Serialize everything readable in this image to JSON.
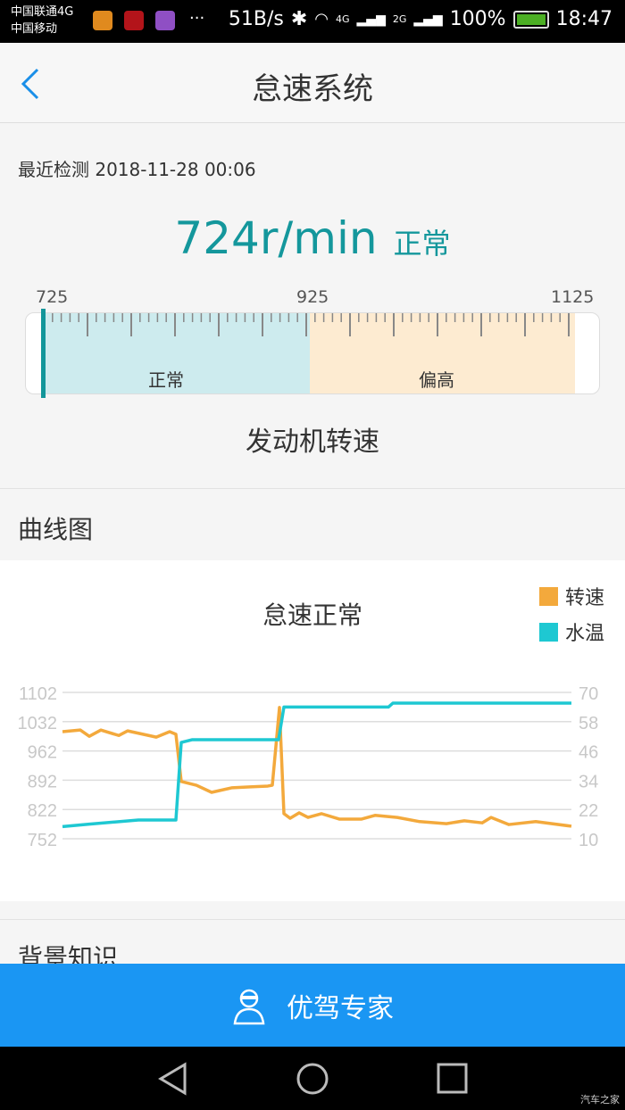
{
  "status_bar": {
    "carrier1": "中国联通4G",
    "carrier2": "中国移动",
    "more": "···",
    "speed": "51B/s",
    "net1": "4G",
    "net2": "2G",
    "battery": "100%",
    "time": "18:47"
  },
  "header": {
    "title": "怠速系统",
    "back_icon": "chevron-left-icon"
  },
  "summary": {
    "recent_label": "最近检测 2018-11-28 00:06",
    "value": "724r/min",
    "status": "正常",
    "accent": "#14979c"
  },
  "gauge": {
    "min_label": "725",
    "mid_label": "925",
    "max_label": "1125",
    "normal_label": "正常",
    "high_label": "偏高",
    "name": "发动机转速",
    "current_value": 724,
    "normal_color": "#cdebee",
    "high_color": "#fdebd1"
  },
  "curve_section": {
    "heading": "曲线图"
  },
  "background_section": {
    "heading": "背景知识"
  },
  "expert_button": {
    "label": "优驾专家",
    "icon": "expert-avatar-icon"
  },
  "watermark": "汽车之家",
  "chart_data": {
    "type": "line",
    "title": "怠速正常",
    "grid": true,
    "legend_placement": "top-right",
    "y_left": {
      "ticks": [
        "1102",
        "1032",
        "962",
        "892",
        "822",
        "752"
      ],
      "range": [
        752,
        1102
      ]
    },
    "y_right": {
      "ticks": [
        "70",
        "58",
        "46",
        "34",
        "22",
        "10"
      ],
      "range": [
        10,
        70
      ]
    },
    "series": [
      {
        "name": "转速",
        "color": "#f3a93c",
        "axis": "left",
        "points": [
          [
            0,
            1008
          ],
          [
            2,
            1012
          ],
          [
            3,
            997
          ],
          [
            4.3,
            1012
          ],
          [
            6.3,
            999
          ],
          [
            7.3,
            1010
          ],
          [
            10.5,
            995
          ],
          [
            12,
            1008
          ],
          [
            12.7,
            1002
          ],
          [
            13.3,
            889
          ],
          [
            15,
            880
          ],
          [
            16.7,
            863
          ],
          [
            19,
            874
          ],
          [
            21,
            876
          ],
          [
            23,
            878
          ],
          [
            23.5,
            880
          ],
          [
            24.3,
            1066
          ],
          [
            24.8,
            812
          ],
          [
            25.5,
            801
          ],
          [
            26.5,
            814
          ],
          [
            27.5,
            803
          ],
          [
            29,
            812
          ],
          [
            31,
            799
          ],
          [
            33.5,
            799
          ],
          [
            35,
            808
          ],
          [
            37.5,
            803
          ],
          [
            40,
            793
          ],
          [
            43,
            788
          ],
          [
            45,
            795
          ],
          [
            47,
            790
          ],
          [
            48,
            803
          ],
          [
            50,
            786
          ],
          [
            53,
            793
          ],
          [
            57,
            782
          ]
        ]
      },
      {
        "name": "水温",
        "color": "#1ec8d2",
        "axis": "right",
        "points": [
          [
            0,
            15
          ],
          [
            3,
            16
          ],
          [
            8.5,
            17.7
          ],
          [
            12.7,
            17.7
          ],
          [
            13.3,
            49.5
          ],
          [
            14.5,
            50.6
          ],
          [
            24.2,
            50.6
          ],
          [
            24.8,
            64
          ],
          [
            36.5,
            64
          ],
          [
            37,
            65.6
          ],
          [
            57,
            65.6
          ]
        ]
      }
    ]
  }
}
